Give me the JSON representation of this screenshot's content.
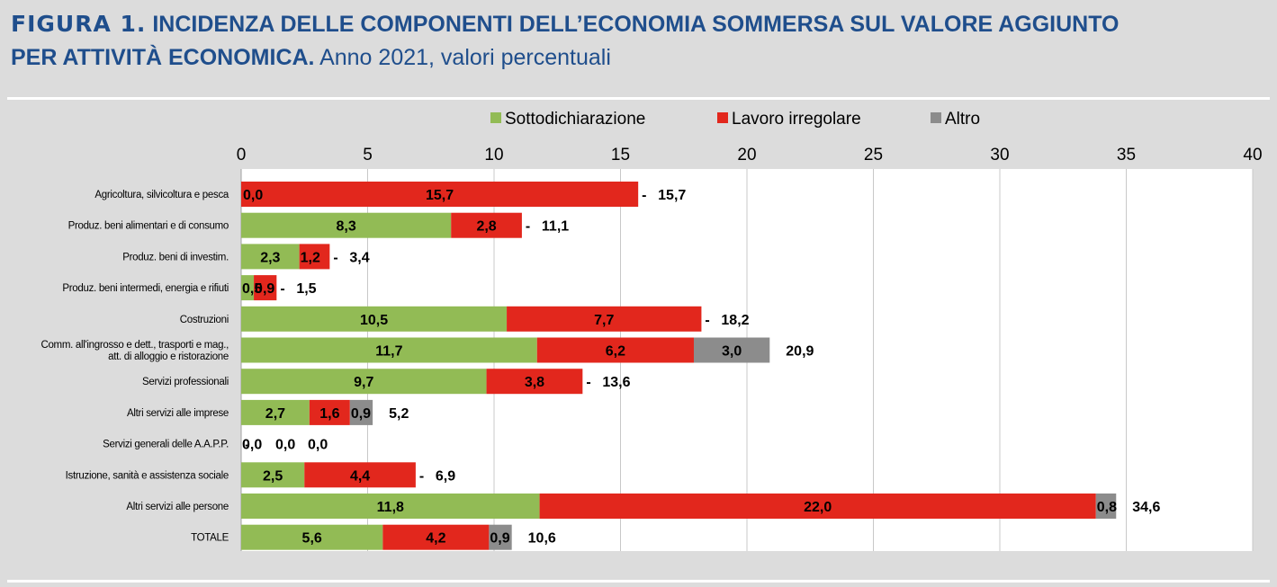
{
  "header": {
    "figure_label": "FIGURA 1.",
    "title_line1": "INCIDENZA DELLE COMPONENTI DELL’ECONOMIA SOMMERSA SUL VALORE AGGIUNTO",
    "title_line2_bold": "PER ATTIVITÀ ECONOMICA.",
    "subtitle": "Anno 2021, valori percentuali"
  },
  "chart_data": {
    "type": "bar",
    "orientation": "horizontal",
    "stacked": true,
    "categories": [
      [
        "Agricoltura, silvicoltura e pesca"
      ],
      [
        "Produz. beni alimentari e di consumo"
      ],
      [
        "Produz. beni di investim."
      ],
      [
        "Produz. beni intermedi, energia e rifiuti"
      ],
      [
        "Costruzioni"
      ],
      [
        "Comm. all'ingrosso e dett., trasporti e mag.,",
        "att. di alloggio e ristorazione"
      ],
      [
        "Servizi professionali"
      ],
      [
        "Altri servizi alle imprese"
      ],
      [
        "Servizi generali delle A.A.P.P."
      ],
      [
        "Istruzione, sanità e assistenza sociale"
      ],
      [
        "Altri servizi alle persone"
      ],
      [
        "TOTALE"
      ]
    ],
    "series": [
      {
        "name": "Sottodichiarazione",
        "color": "#92bb55",
        "values": [
          0.0,
          8.3,
          2.3,
          0.5,
          10.5,
          11.7,
          9.7,
          2.7,
          0.0,
          2.5,
          11.8,
          5.6
        ],
        "labels": [
          "",
          "8,3",
          "2,3",
          "0,5",
          "10,5",
          "11,7",
          "9,7",
          "2,7",
          "0,0",
          "2,5",
          "11,8",
          "5,6"
        ]
      },
      {
        "name": "Lavoro irregolare",
        "color": "#e2271d",
        "values": [
          15.7,
          2.8,
          1.2,
          0.9,
          7.7,
          6.2,
          3.8,
          1.6,
          0.0,
          4.4,
          22.0,
          4.2
        ],
        "labels": [
          "15,7",
          "2,8",
          "1,2",
          "0,9",
          "7,7",
          "6,2",
          "3,8",
          "1,6",
          "0,0",
          "4,4",
          "22,0",
          "4,2"
        ]
      },
      {
        "name": "Altro",
        "color": "#8c8c8c",
        "values": [
          0,
          0,
          0,
          0,
          0,
          3.0,
          0,
          0.9,
          0,
          0,
          0.8,
          0.9
        ],
        "labels": [
          "-",
          "-",
          "-",
          "-",
          "-",
          "3,0",
          "-",
          "0,9",
          "-",
          "-",
          "0,8",
          "0,9"
        ]
      }
    ],
    "extra_labels": [
      {
        "row": 0,
        "text": "0,0"
      }
    ],
    "totals": [
      "15,7",
      "11,1",
      "3,4",
      "1,5",
      "18,2",
      "20,9",
      "13,6",
      "5,2",
      "0,0",
      "6,9",
      "34,6",
      "10,6"
    ],
    "xlim": [
      0,
      40
    ],
    "xticks": [
      "0",
      "5",
      "10",
      "15",
      "20",
      "25",
      "30",
      "35",
      "40"
    ],
    "x_axis_position": "top",
    "grid": true,
    "legend_position": "top"
  }
}
